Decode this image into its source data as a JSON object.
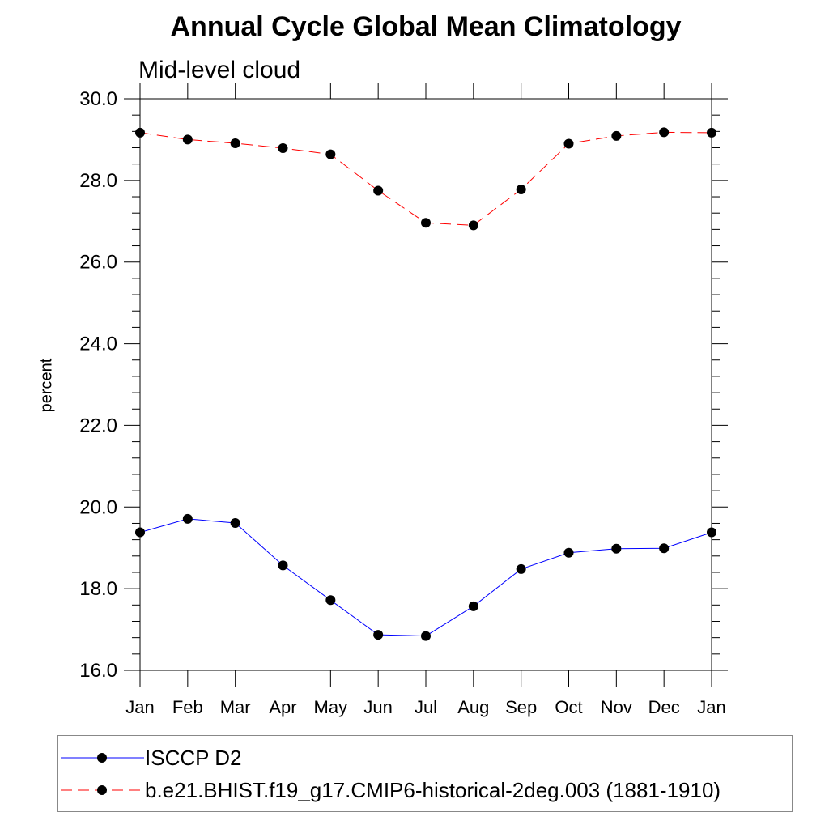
{
  "chart_data": {
    "type": "line",
    "title": "Annual Cycle Global Mean Climatology",
    "subtitle": "Mid-level cloud",
    "xlabel": "",
    "ylabel": "percent",
    "categories": [
      "Jan",
      "Feb",
      "Mar",
      "Apr",
      "May",
      "Jun",
      "Jul",
      "Aug",
      "Sep",
      "Oct",
      "Nov",
      "Dec",
      "Jan"
    ],
    "ylim": [
      16.0,
      30.0
    ],
    "yticks": [
      "16.0",
      "18.0",
      "20.0",
      "22.0",
      "24.0",
      "26.0",
      "28.0",
      "30.0"
    ],
    "grid": false,
    "legend_position": "bottom",
    "series": [
      {
        "name": "ISCCP D2",
        "color": "#0000ff",
        "line_style": "solid",
        "marker": "filled-circle",
        "values": [
          19.38,
          19.71,
          19.61,
          18.57,
          17.72,
          16.87,
          16.84,
          17.57,
          18.48,
          18.88,
          18.98,
          18.99,
          19.38
        ]
      },
      {
        "name": "b.e21.BHIST.f19_g17.CMIP6-historical-2deg.003 (1881-1910)",
        "color": "#ff0000",
        "line_style": "dashed",
        "marker": "filled-circle",
        "values": [
          29.17,
          29.0,
          28.91,
          28.79,
          28.64,
          27.75,
          26.96,
          26.9,
          27.78,
          28.9,
          29.09,
          29.18,
          29.17
        ]
      }
    ]
  }
}
